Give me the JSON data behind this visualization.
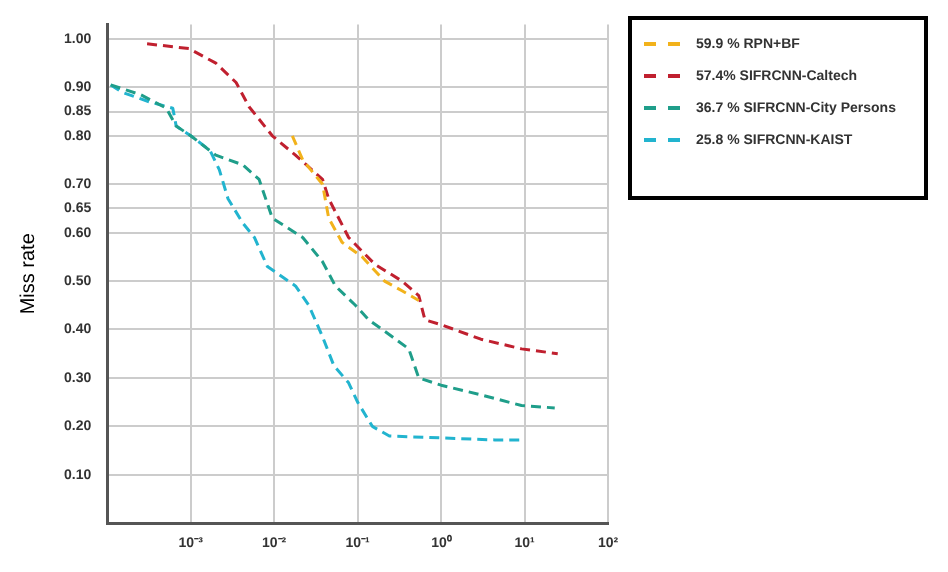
{
  "chart_data": {
    "type": "line",
    "ylabel": "Miss rate",
    "log": "x",
    "grid": true,
    "legend": "top right",
    "marker": "none",
    "line_style": "dashed",
    "xlim": [
      0.0001,
      100
    ],
    "xticks": [
      {
        "value": 0.001,
        "label": "10⁻³"
      },
      {
        "value": 0.01,
        "label": "10⁻²"
      },
      {
        "value": 0.1,
        "label": "10⁻¹"
      },
      {
        "value": 1,
        "label": "10⁰"
      },
      {
        "value": 10,
        "label": "10¹"
      },
      {
        "value": 100,
        "label": "10²"
      }
    ],
    "ylim": [
      0,
      1.03
    ],
    "yticks": [
      {
        "value": 0.1,
        "label": "0.10"
      },
      {
        "value": 0.2,
        "label": "0.20"
      },
      {
        "value": 0.3,
        "label": "0.30"
      },
      {
        "value": 0.4,
        "label": "0.40"
      },
      {
        "value": 0.5,
        "label": "0.50"
      },
      {
        "value": 0.6,
        "label": "0.60"
      },
      {
        "value": 0.65,
        "label": "0.65"
      },
      {
        "value": 0.7,
        "label": "0.70"
      },
      {
        "value": 0.8,
        "label": "0.80"
      },
      {
        "value": 0.85,
        "label": "0.85"
      },
      {
        "value": 0.9,
        "label": "0.90"
      },
      {
        "value": 1,
        "label": "1.00"
      }
    ],
    "series": [
      {
        "name": "59.9 % RPN+BF",
        "color": "#f2b21b",
        "x": [
          0.0165,
          0.022,
          0.038,
          0.045,
          0.065,
          0.113,
          0.21,
          0.34,
          0.54
        ],
        "values": [
          0.8,
          0.75,
          0.7,
          0.63,
          0.58,
          0.55,
          0.5,
          0.48,
          0.46
        ]
      },
      {
        "name": "57.4% SIFRCNN-Caltech",
        "color": "#c0202f",
        "x": [
          0.0003,
          0.00095,
          0.002,
          0.0035,
          0.005,
          0.0095,
          0.018,
          0.038,
          0.045,
          0.078,
          0.16,
          0.34,
          0.54,
          0.64,
          1,
          3,
          9.2,
          25
        ],
        "values": [
          0.99,
          0.98,
          0.95,
          0.91,
          0.86,
          0.8,
          0.76,
          0.71,
          0.67,
          0.59,
          0.535,
          0.5,
          0.47,
          0.42,
          0.41,
          0.38,
          0.36,
          0.35
        ]
      },
      {
        "name": "36.7 % SIFRCNN-City Persons",
        "color": "#1f9e8a",
        "x": [
          0.00011,
          0.00025,
          0.00051,
          0.00067,
          0.001,
          0.002,
          0.0042,
          0.0066,
          0.0095,
          0.022,
          0.038,
          0.054,
          0.094,
          0.136,
          0.26,
          0.41,
          0.54,
          1,
          3,
          9.2,
          23
        ],
        "values": [
          0.905,
          0.885,
          0.857,
          0.82,
          0.8,
          0.76,
          0.74,
          0.71,
          0.63,
          0.59,
          0.54,
          0.49,
          0.45,
          0.42,
          0.385,
          0.36,
          0.3,
          0.285,
          0.265,
          0.243,
          0.238
        ]
      },
      {
        "name": "25.8 % SIFRCNN-KAIST",
        "color": "#22b4cf",
        "x": [
          0.00011,
          0.00015,
          0.00032,
          0.00061,
          0.00067,
          0.001,
          0.0017,
          0.0022,
          0.0028,
          0.0042,
          0.0058,
          0.0083,
          0.018,
          0.026,
          0.038,
          0.052,
          0.078,
          0.1,
          0.15,
          0.24,
          4.4,
          10
        ],
        "values": [
          0.905,
          0.89,
          0.87,
          0.857,
          0.82,
          0.8,
          0.77,
          0.73,
          0.67,
          0.62,
          0.59,
          0.53,
          0.49,
          0.45,
          0.385,
          0.325,
          0.29,
          0.25,
          0.2,
          0.18,
          0.172,
          0.172
        ]
      }
    ]
  }
}
